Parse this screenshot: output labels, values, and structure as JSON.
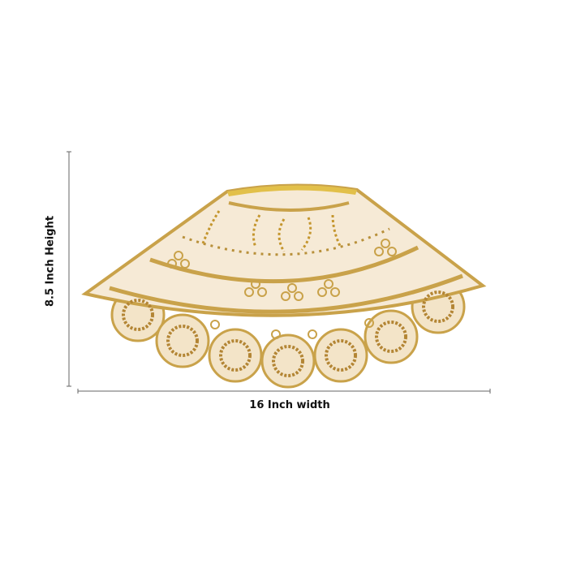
{
  "product": {
    "width_label": "16 Inch width",
    "height_label": "8.5 Inch Height",
    "colors": {
      "fabric": "#f6ead6",
      "gold": "#c9a24a",
      "sequin": "#a97d2a",
      "dimension_line": "#555555"
    }
  }
}
